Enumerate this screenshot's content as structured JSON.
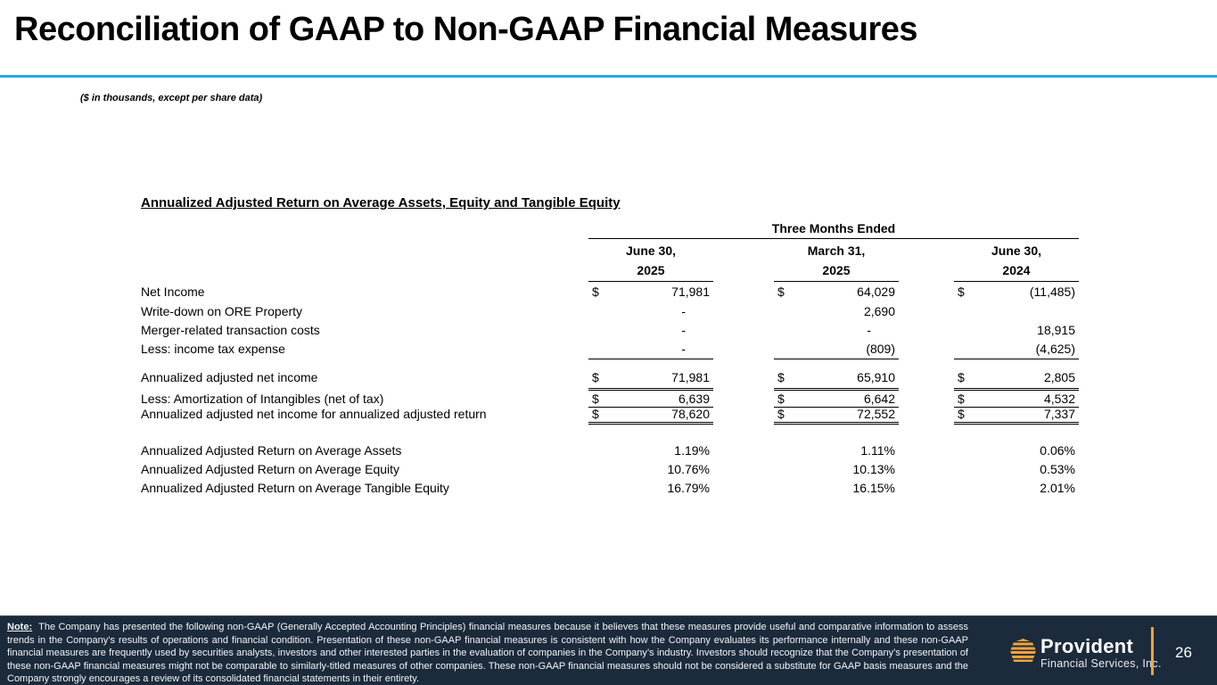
{
  "slide": {
    "title": "Reconciliation of GAAP to Non-GAAP Financial Measures",
    "units_note": "($ in thousands, except per share data)",
    "accent_color": "#29A9E1"
  },
  "table": {
    "section_heading": "Annualized Adjusted Return on Average Assets, Equity and Tangible Equity",
    "group_header": "Three Months Ended",
    "columns": [
      {
        "line1": "June 30,",
        "line2": "2025"
      },
      {
        "line1": "March 31,",
        "line2": "2025"
      },
      {
        "line1": "June 30,",
        "line2": "2024"
      }
    ],
    "rows": [
      {
        "label": "Net Income",
        "cells": [
          {
            "d": "$",
            "v": "71,981"
          },
          {
            "d": "$",
            "v": "64,029"
          },
          {
            "d": "$",
            "v": "(11,485)"
          }
        ]
      },
      {
        "label": "Write-down on ORE Property",
        "cells": [
          {
            "d": "",
            "v": "-"
          },
          {
            "d": "",
            "v": "2,690"
          },
          {
            "d": "",
            "v": ""
          }
        ]
      },
      {
        "label": "Merger-related transaction costs",
        "cells": [
          {
            "d": "",
            "v": "-"
          },
          {
            "d": "",
            "v": "-"
          },
          {
            "d": "",
            "v": "18,915"
          }
        ]
      },
      {
        "label": "Less: income tax expense",
        "cells": [
          {
            "d": "",
            "v": "-"
          },
          {
            "d": "",
            "v": "(809)"
          },
          {
            "d": "",
            "v": "(4,625)"
          }
        ]
      },
      {
        "label": "Annualized adjusted net income",
        "cells": [
          {
            "d": "$",
            "v": "71,981"
          },
          {
            "d": "$",
            "v": "65,910"
          },
          {
            "d": "$",
            "v": "2,805"
          }
        ]
      },
      {
        "label": "Less: Amortization of Intangibles (net of tax)",
        "cells": [
          {
            "d": "$",
            "v": "6,639"
          },
          {
            "d": "$",
            "v": "6,642"
          },
          {
            "d": "$",
            "v": "4,532"
          }
        ]
      },
      {
        "label": "Annualized adjusted net income for annualized adjusted return",
        "cells": [
          {
            "d": "$",
            "v": "78,620"
          },
          {
            "d": "$",
            "v": "72,552"
          },
          {
            "d": "$",
            "v": "7,337"
          }
        ]
      },
      {
        "label": "Annualized Adjusted Return on Average Assets",
        "cells": [
          {
            "d": "",
            "v": "1.19%"
          },
          {
            "d": "",
            "v": "1.11%"
          },
          {
            "d": "",
            "v": "0.06%"
          }
        ]
      },
      {
        "label": "Annualized Adjusted Return on Average Equity",
        "cells": [
          {
            "d": "",
            "v": "10.76%"
          },
          {
            "d": "",
            "v": "10.13%"
          },
          {
            "d": "",
            "v": "0.53%"
          }
        ]
      },
      {
        "label": "Annualized Adjusted Return on Average Tangible Equity",
        "cells": [
          {
            "d": "",
            "v": "16.79%"
          },
          {
            "d": "",
            "v": "16.15%"
          },
          {
            "d": "",
            "v": "2.01%"
          }
        ]
      }
    ]
  },
  "footer": {
    "note_label": "Note:",
    "note_text": "The Company has presented the following non-GAAP (Generally Accepted Accounting Principles) financial measures because it believes that these measures provide useful and comparative information to assess trends in the Company’s results of operations and financial condition.  Presentation of  these non-GAAP financial measures is consistent with how the Company evaluates its performance internally and these non-GAAP financial measures are frequently used by securities analysts, investors and other interested parties in the evaluation of companies in the Company’s industry.  Investors should recognize that the Company’s presentation of these non-GAAP financial measures might not be comparable to similarly-titled measures of other companies.  These non-GAAP financial measures should not be considered a substitute for GAAP basis measures and the Company strongly encourages a review of its consolidated financial statements in their entirety.",
    "logo_name": "Provident",
    "logo_subtitle": "Financial Services, Inc.",
    "page_number": "26",
    "bar_color": "#1C2B3B",
    "accent_orange": "#F2A33C"
  }
}
